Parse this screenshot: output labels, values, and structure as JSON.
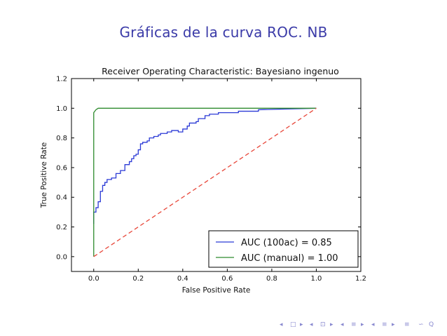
{
  "slide": {
    "title": "Gráficas de la curva ROC. NB"
  },
  "colors": {
    "title": "#3b3ba8",
    "series_100ac": "#2b3ad6",
    "series_manual": "#2e8b2e",
    "diagonal": "#e8473a",
    "nav": "#8a8ad0"
  },
  "nav_icons": [
    "nav-left-icon",
    "nav-right-icon",
    "frame-icon",
    "section-icon",
    "subsection-icon",
    "align-icon",
    "search-icon"
  ],
  "chart_data": {
    "type": "line",
    "title": "Receiver Operating Characteristic: Bayesiano ingenuo",
    "xlabel": "False Positive Rate",
    "ylabel": "True Positive Rate",
    "xlim": [
      -0.1,
      1.2
    ],
    "ylim": [
      -0.1,
      1.2
    ],
    "xticks": [
      "0.0",
      "0.2",
      "0.4",
      "0.6",
      "0.8",
      "1.0",
      "1.2"
    ],
    "yticks": [
      "0.0",
      "0.2",
      "0.4",
      "0.6",
      "0.8",
      "1.0",
      "1.2"
    ],
    "xtick_values": [
      0,
      0.2,
      0.4,
      0.6,
      0.8,
      1.0,
      1.2
    ],
    "ytick_values": [
      0,
      0.2,
      0.4,
      0.6,
      0.8,
      1.0,
      1.2
    ],
    "grid": false,
    "legend_position": "lower-right",
    "series": [
      {
        "name": "AUC (100ac) = 0.85",
        "color": "#2b3ad6",
        "x": [
          0.0,
          0.0,
          0.01,
          0.01,
          0.02,
          0.02,
          0.03,
          0.03,
          0.04,
          0.04,
          0.05,
          0.05,
          0.06,
          0.06,
          0.08,
          0.08,
          0.1,
          0.1,
          0.12,
          0.12,
          0.14,
          0.14,
          0.16,
          0.16,
          0.17,
          0.17,
          0.18,
          0.18,
          0.19,
          0.19,
          0.2,
          0.2,
          0.21,
          0.21,
          0.22,
          0.22,
          0.24,
          0.24,
          0.25,
          0.25,
          0.27,
          0.27,
          0.29,
          0.29,
          0.3,
          0.3,
          0.31,
          0.31,
          0.33,
          0.33,
          0.35,
          0.35,
          0.38,
          0.38,
          0.4,
          0.4,
          0.42,
          0.42,
          0.43,
          0.43,
          0.46,
          0.46,
          0.47,
          0.47,
          0.5,
          0.5,
          0.52,
          0.52,
          0.56,
          0.56,
          0.65,
          0.65,
          0.74,
          0.74,
          1.0
        ],
        "y": [
          0.22,
          0.3,
          0.3,
          0.33,
          0.33,
          0.37,
          0.37,
          0.44,
          0.44,
          0.48,
          0.48,
          0.5,
          0.5,
          0.52,
          0.52,
          0.53,
          0.53,
          0.56,
          0.56,
          0.58,
          0.58,
          0.62,
          0.62,
          0.64,
          0.64,
          0.66,
          0.66,
          0.68,
          0.68,
          0.69,
          0.69,
          0.72,
          0.72,
          0.76,
          0.76,
          0.77,
          0.77,
          0.78,
          0.78,
          0.8,
          0.8,
          0.81,
          0.81,
          0.82,
          0.82,
          0.83,
          0.83,
          0.83,
          0.83,
          0.84,
          0.84,
          0.85,
          0.85,
          0.84,
          0.84,
          0.86,
          0.86,
          0.88,
          0.88,
          0.9,
          0.9,
          0.91,
          0.91,
          0.93,
          0.93,
          0.95,
          0.95,
          0.96,
          0.96,
          0.97,
          0.97,
          0.98,
          0.98,
          0.99,
          1.0
        ]
      },
      {
        "name": "AUC (manual) = 1.00",
        "color": "#2e8b2e",
        "x": [
          0.0,
          0.0,
          0.01,
          0.02,
          1.0
        ],
        "y": [
          0.0,
          0.97,
          0.99,
          1.0,
          1.0
        ]
      },
      {
        "color": "#e8473a",
        "dashed": true,
        "x": [
          0.0,
          1.0
        ],
        "y": [
          0.0,
          1.0
        ]
      }
    ]
  }
}
